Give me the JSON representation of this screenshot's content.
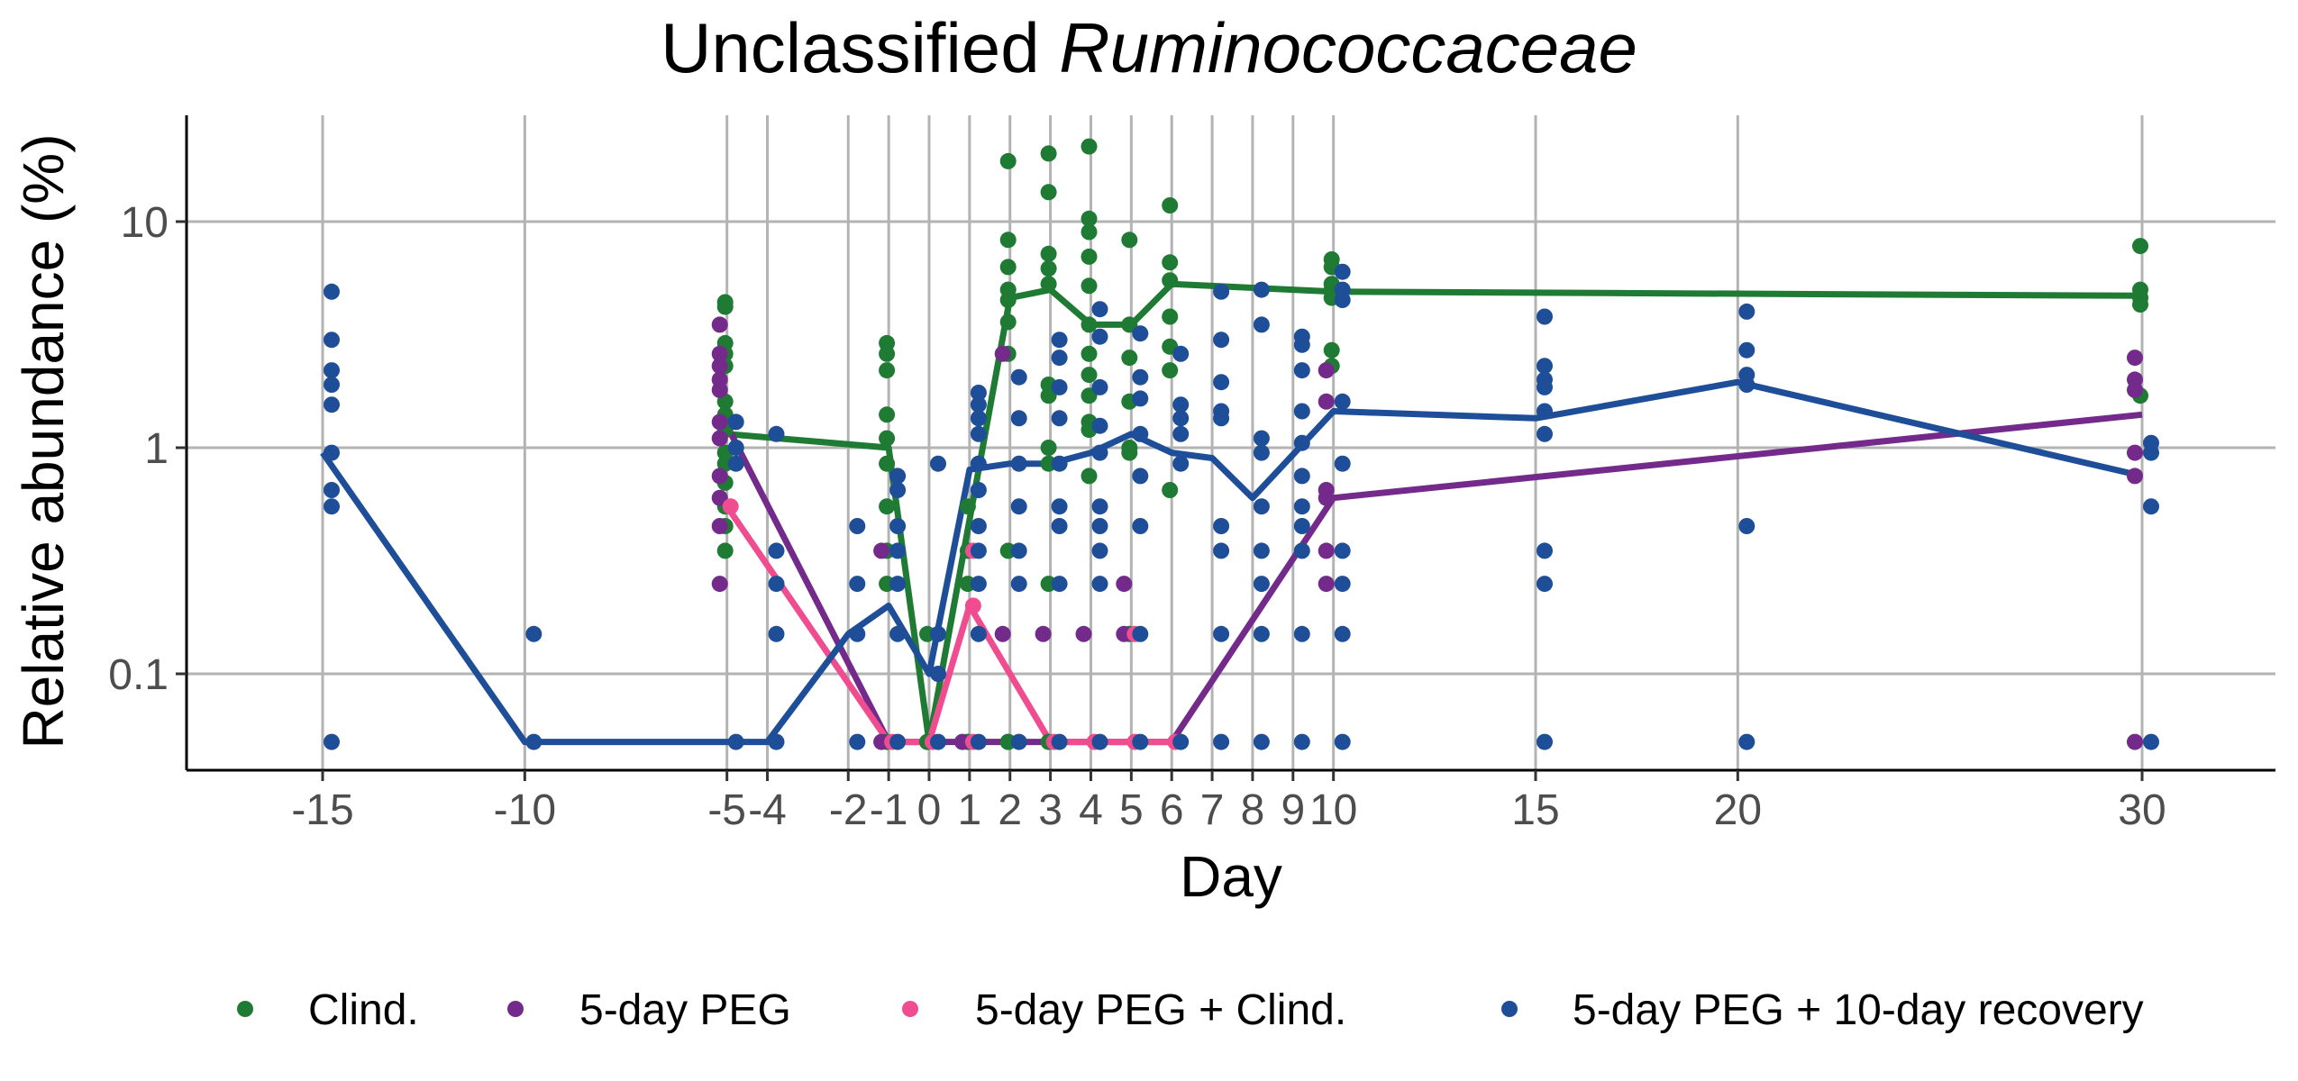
{
  "chart_data": {
    "type": "scatter",
    "title": {
      "prefix": "Unclassified ",
      "italic": "Ruminococcaceae"
    },
    "xlabel": "Day",
    "ylabel": "Relative abundance (%)",
    "y_scale": "log10",
    "ylim": [
      0.04,
      28
    ],
    "xlim": [
      -18,
      33
    ],
    "x_ticks": [
      -15,
      -10,
      -5,
      -4,
      -2,
      -1,
      0,
      1,
      2,
      3,
      4,
      5,
      6,
      7,
      8,
      9,
      10,
      15,
      20,
      30
    ],
    "x_tick_labels": [
      "-15",
      "-10",
      "-5",
      "-4",
      "-2",
      "-1",
      "0",
      "1",
      "2",
      "3",
      "4",
      "5",
      "6",
      "7",
      "8",
      "9",
      "10",
      "15",
      "20",
      "30"
    ],
    "y_ticks": [
      0.1,
      1,
      10
    ],
    "y_tick_labels": [
      "0.1",
      "1",
      "10"
    ],
    "grid": true,
    "legend_position": "bottom",
    "series": [
      {
        "name": "Clind.",
        "color": "#1f7a34",
        "line": {
          "x": [
            -5,
            -1,
            0,
            2,
            3,
            4,
            5,
            6,
            10,
            30
          ],
          "y": [
            1.15,
            1.0,
            0.05,
            4.6,
            5.0,
            3.5,
            3.5,
            5.3,
            4.9,
            4.7
          ]
        },
        "points": [
          {
            "x": -5,
            "y": [
              4.4,
              4.2,
              2.9,
              2.6,
              2.3,
              1.6,
              1.4,
              1.2,
              0.95,
              0.85,
              0.7,
              0.55,
              0.45,
              0.35
            ]
          },
          {
            "x": -1,
            "y": [
              2.9,
              2.6,
              2.2,
              1.4,
              1.1,
              0.85,
              0.55,
              0.35,
              0.25,
              0.05
            ]
          },
          {
            "x": 0,
            "y": [
              0.05,
              0.05,
              0.15
            ]
          },
          {
            "x": 1,
            "y": [
              0.55,
              0.35,
              0.25,
              0.05,
              0.05
            ]
          },
          {
            "x": 2,
            "y": [
              18.5,
              8.3,
              6.3,
              5.0,
              4.5,
              3.6,
              2.6,
              0.35,
              0.05,
              0.05
            ]
          },
          {
            "x": 3,
            "y": [
              20.0,
              13.5,
              7.2,
              6.2,
              5.3,
              1.9,
              1.7,
              1.0,
              0.85,
              0.25,
              0.05
            ]
          },
          {
            "x": 4,
            "y": [
              21.5,
              10.3,
              9.0,
              7.0,
              5.2,
              3.5,
              2.6,
              2.1,
              1.7,
              1.3,
              1.2,
              0.75
            ]
          },
          {
            "x": 5,
            "y": [
              8.3,
              3.5,
              2.5,
              1.6,
              1.0,
              0.95,
              0.15
            ]
          },
          {
            "x": 6,
            "y": [
              11.8,
              6.6,
              5.5,
              3.8,
              2.8,
              2.2,
              0.65
            ]
          },
          {
            "x": 10,
            "y": [
              6.8,
              6.3,
              5.3,
              5.0,
              4.6,
              2.7,
              2.3
            ]
          },
          {
            "x": 30,
            "y": [
              7.8,
              5.0,
              4.6,
              4.3,
              1.7
            ]
          }
        ]
      },
      {
        "name": "5-day PEG",
        "color": "#742a8a",
        "line": {
          "x": [
            -5,
            -1,
            1,
            6,
            10,
            30
          ],
          "y": [
            1.25,
            0.05,
            0.05,
            0.05,
            0.6,
            1.4
          ]
        },
        "points": [
          {
            "x": -5,
            "y": [
              3.5,
              2.6,
              2.3,
              2.0,
              1.8,
              1.3,
              1.1,
              0.75,
              0.6,
              0.45,
              0.25
            ]
          },
          {
            "x": -1,
            "y": [
              0.35,
              0.05
            ]
          },
          {
            "x": 1,
            "y": [
              0.05
            ]
          },
          {
            "x": 2,
            "y": [
              2.6,
              0.15
            ]
          },
          {
            "x": 3,
            "y": [
              0.15
            ]
          },
          {
            "x": 4,
            "y": [
              0.15
            ]
          },
          {
            "x": 5,
            "y": [
              0.25,
              0.15
            ]
          },
          {
            "x": 10,
            "y": [
              2.2,
              1.6,
              0.65,
              0.6,
              0.35,
              0.25
            ]
          },
          {
            "x": 30,
            "y": [
              2.5,
              2.0,
              1.8,
              0.95,
              0.75,
              0.05
            ]
          }
        ]
      },
      {
        "name": "5-day PEG + Clind.",
        "color": "#ef4d8f",
        "line": {
          "x": [
            -5,
            -1,
            0,
            1,
            3,
            4,
            5,
            6
          ],
          "y": [
            0.55,
            0.05,
            0.05,
            0.2,
            0.05,
            0.05,
            0.05,
            0.05
          ]
        },
        "points": [
          {
            "x": -5,
            "y": [
              0.55
            ]
          },
          {
            "x": -1,
            "y": [
              0.05
            ]
          },
          {
            "x": 0,
            "y": [
              0.05
            ]
          },
          {
            "x": 1,
            "y": [
              0.35,
              0.2,
              0.05
            ]
          },
          {
            "x": 3,
            "y": [
              0.05
            ]
          },
          {
            "x": 4,
            "y": [
              0.05
            ]
          },
          {
            "x": 5,
            "y": [
              0.15,
              0.05
            ]
          },
          {
            "x": 6,
            "y": [
              0.05
            ]
          }
        ]
      },
      {
        "name": "5-day PEG + 10-day recovery",
        "color": "#1f4e99",
        "line": {
          "x": [
            -15,
            -10,
            -5,
            -4,
            -2,
            -1,
            0,
            1,
            2,
            3,
            4,
            5,
            6,
            7,
            8,
            10,
            15,
            20,
            30
          ],
          "y": [
            0.95,
            0.05,
            0.05,
            0.05,
            0.15,
            0.2,
            0.1,
            0.8,
            0.85,
            0.85,
            0.95,
            1.15,
            0.95,
            0.9,
            0.6,
            1.45,
            1.35,
            1.95,
            0.75
          ]
        },
        "points": [
          {
            "x": -15,
            "y": [
              4.9,
              3.0,
              2.2,
              1.9,
              1.55,
              0.95,
              0.65,
              0.55,
              0.05
            ]
          },
          {
            "x": -10,
            "y": [
              0.15,
              0.05
            ]
          },
          {
            "x": -5,
            "y": [
              1.3,
              1.0,
              0.85,
              0.05
            ]
          },
          {
            "x": -4,
            "y": [
              1.15,
              0.35,
              0.25,
              0.15,
              0.05
            ]
          },
          {
            "x": -2,
            "y": [
              0.45,
              0.25,
              0.15,
              0.05
            ]
          },
          {
            "x": -1,
            "y": [
              0.75,
              0.65,
              0.45,
              0.35,
              0.25,
              0.15,
              0.05
            ]
          },
          {
            "x": 0,
            "y": [
              0.85,
              0.15,
              0.1,
              0.05
            ]
          },
          {
            "x": 1,
            "y": [
              1.75,
              1.55,
              1.35,
              1.15,
              0.85,
              0.65,
              0.45,
              0.35,
              0.25,
              0.15,
              0.05
            ]
          },
          {
            "x": 2,
            "y": [
              2.05,
              1.35,
              0.85,
              0.55,
              0.35,
              0.25,
              0.05
            ]
          },
          {
            "x": 3,
            "y": [
              3.0,
              2.5,
              1.85,
              1.35,
              0.85,
              0.55,
              0.45,
              0.25,
              0.05
            ]
          },
          {
            "x": 4,
            "y": [
              4.1,
              3.1,
              1.85,
              1.25,
              0.95,
              0.55,
              0.45,
              0.35,
              0.25,
              0.05
            ]
          },
          {
            "x": 5,
            "y": [
              3.2,
              2.05,
              1.65,
              1.15,
              0.75,
              0.45,
              0.15,
              0.05
            ]
          },
          {
            "x": 6,
            "y": [
              2.6,
              1.55,
              1.35,
              1.15,
              0.85,
              0.05
            ]
          },
          {
            "x": 7,
            "y": [
              4.9,
              3.0,
              1.95,
              1.45,
              1.35,
              0.45,
              0.35,
              0.15,
              0.05
            ]
          },
          {
            "x": 8,
            "y": [
              5.0,
              3.5,
              1.1,
              0.95,
              0.55,
              0.35,
              0.25,
              0.15,
              0.05
            ]
          },
          {
            "x": 9,
            "y": [
              3.1,
              2.85,
              2.2,
              1.45,
              1.05,
              0.75,
              0.55,
              0.45,
              0.35,
              0.15,
              0.05
            ]
          },
          {
            "x": 10,
            "y": [
              6.0,
              5.0,
              4.5,
              1.6,
              0.85,
              0.35,
              0.25,
              0.15,
              0.05
            ]
          },
          {
            "x": 15,
            "y": [
              3.8,
              2.3,
              2.0,
              1.85,
              1.45,
              1.15,
              0.35,
              0.25,
              0.05
            ]
          },
          {
            "x": 20,
            "y": [
              4.0,
              2.7,
              2.1,
              1.9,
              0.45,
              0.05
            ]
          },
          {
            "x": 30,
            "y": [
              1.05,
              0.95,
              0.55,
              0.05
            ]
          }
        ]
      }
    ]
  }
}
